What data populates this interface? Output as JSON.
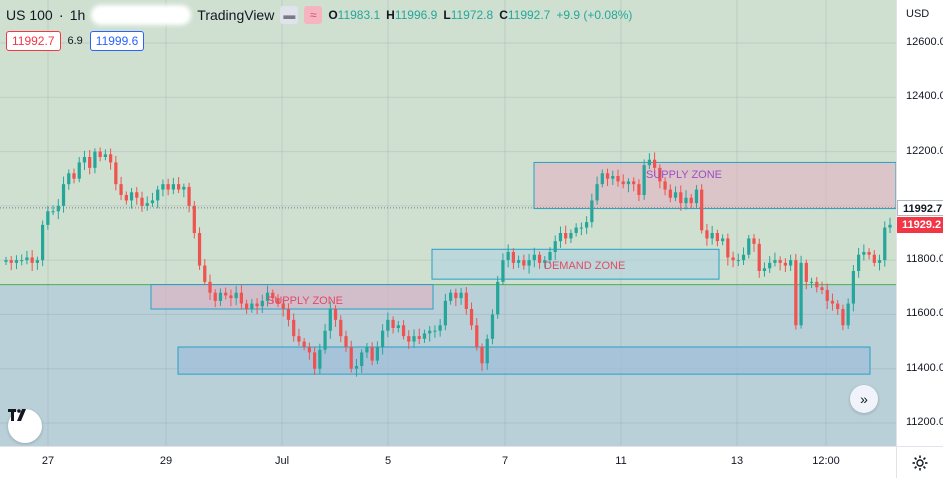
{
  "header": {
    "symbol": "US 100",
    "separator": "·",
    "interval": "1h",
    "platform": "TradingView",
    "ohlc": {
      "o_key": "O",
      "o": "11983.1",
      "h_key": "H",
      "h": "11996.9",
      "l_key": "L",
      "l": "11972.8",
      "c_key": "C",
      "c": "11992.7",
      "change": "+9.9 (+0.08%)"
    },
    "bid": "11992.7",
    "spread": "6.9",
    "ask": "11999.6"
  },
  "price_axis": {
    "currency": "USD",
    "ticks": [
      "12600.0",
      "12400.0",
      "12200.0",
      "12000.0",
      "11800.0",
      "11600.0",
      "11400.0",
      "11200.0"
    ],
    "current_price": "11992.7",
    "current_color": "#131722",
    "marker_price": "11929.2",
    "marker_color": "#f23645"
  },
  "time_axis": {
    "labels": [
      "27",
      "29",
      "Jul",
      "5",
      "7",
      "11",
      "13",
      "12:00"
    ]
  },
  "zones": {
    "supply_zone_1": "SUPPLY ZONE",
    "supply_zone_2": "SUPPLY ZONE",
    "demand_zone": "DEMAND ZONE"
  },
  "colors": {
    "up": "#26a69a",
    "down": "#ef5350",
    "bg_upper": "#cfe0d1",
    "bg_lower": "#b9d0d9",
    "supply_fill": "rgba(227,179,193,0.6)",
    "demand_fill": "rgba(160,190,216,0.7)",
    "zone_border": "#26a1c4"
  },
  "icons": {
    "logo": "tradingview-logo-icon",
    "scroll": "double-chevron-right-icon",
    "settings": "gear-icon"
  },
  "chart_data": {
    "type": "candlestick",
    "title": "",
    "ylabel": "USD",
    "ylim": [
      11150,
      12720
    ],
    "x_labels": [
      "27",
      "29",
      "Jul",
      "5",
      "7",
      "11",
      "13",
      "12:00"
    ],
    "series": [
      {
        "values": [
          11800,
          11790,
          11800,
          11800,
          11810,
          11790,
          11800,
          11930,
          11980,
          11980,
          12000,
          12080,
          12120,
          12100,
          12160,
          12180,
          12140,
          12200,
          12180,
          12190,
          12160,
          12080,
          12040,
          12020,
          12050,
          12030,
          12000,
          12010,
          12020,
          12060,
          12080,
          12060,
          12080,
          12060,
          12070,
          12000,
          11900,
          11780,
          11720,
          11680,
          11650,
          11680,
          11670,
          11660,
          11680,
          11640,
          11620,
          11640,
          11630,
          11650,
          11680,
          11660,
          11640,
          11620,
          11580,
          11520,
          11500,
          11480,
          11460,
          11400,
          11470,
          11540,
          11620,
          11580,
          11520,
          11480,
          11400,
          11410,
          11460,
          11480,
          11430,
          11480,
          11540,
          11580,
          11550,
          11560,
          11520,
          11500,
          11520,
          11510,
          11530,
          11540,
          11540,
          11560,
          11650,
          11680,
          11660,
          11680,
          11620,
          11560,
          11480,
          11420,
          11510,
          11600,
          11720,
          11800,
          11830,
          11790,
          11800,
          11780,
          11800,
          11820,
          11790,
          11800,
          11830,
          11870,
          11900,
          11880,
          11900,
          11920,
          11920,
          11940,
          12020,
          12080,
          12120,
          12100,
          12110,
          12090,
          12080,
          12090,
          12080,
          12040,
          12150,
          12170,
          12140,
          12090,
          12060,
          12030,
          12050,
          12010,
          12030,
          12010,
          12060,
          11910,
          11880,
          11900,
          11870,
          11880,
          11810,
          11800,
          11800,
          11820,
          11880,
          11860,
          11760,
          11770,
          11790,
          11800,
          11790,
          11780,
          11800,
          11560,
          11790,
          11720,
          11720,
          11700,
          11690,
          11650,
          11640,
          11620,
          11560,
          11640,
          11760,
          11820,
          11830,
          11820,
          11790,
          11800,
          11920,
          11930
        ]
      }
    ],
    "horizontal_levels": [
      11992.7,
      11929.2
    ],
    "annotations": [
      "SUPPLY ZONE",
      "SUPPLY ZONE",
      "DEMAND ZONE"
    ]
  }
}
